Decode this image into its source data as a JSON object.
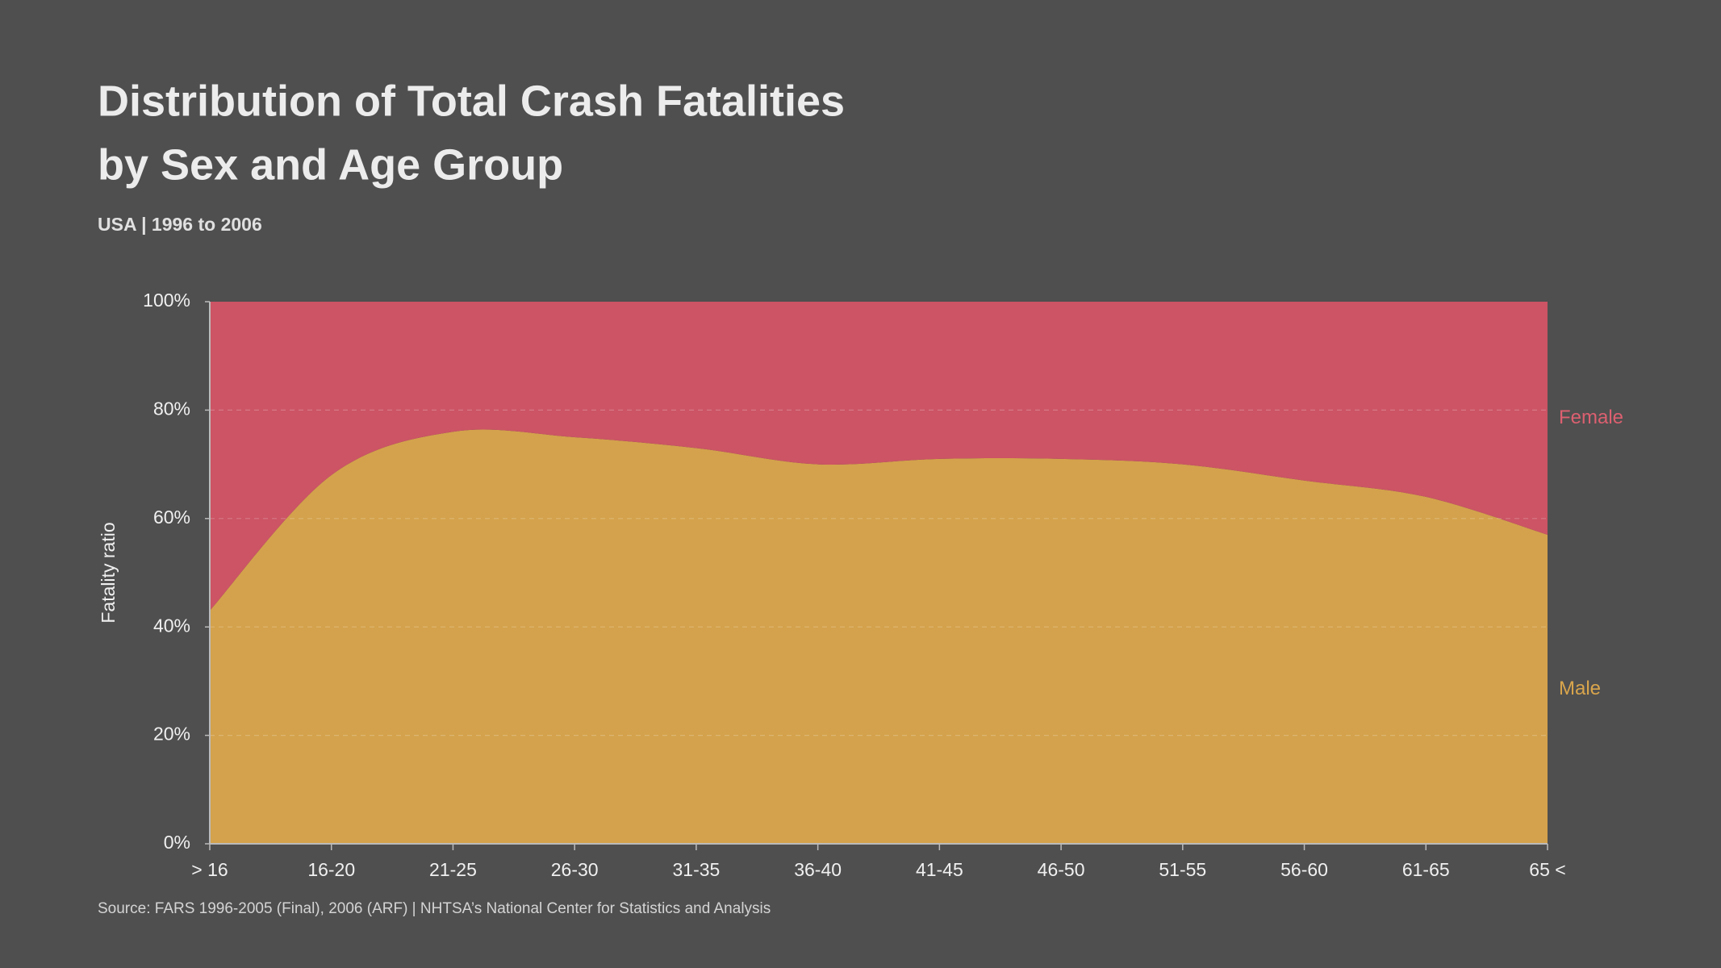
{
  "chart_data": {
    "type": "stacked-area",
    "title": [
      "Distribution of Total Crash Fatalities",
      "by Sex and Age Group"
    ],
    "subtitle": "USA | 1996 to 2006",
    "source": "Source:  FARS 1996-2005 (Final), 2006 (ARF) | NHTSA’s National Center for Statistics and Analysis",
    "y_label": "Fatality ratio",
    "categories": [
      "> 16",
      "16-20",
      "21-25",
      "26-30",
      "31-35",
      "36-40",
      "41-45",
      "46-50",
      "51-55",
      "56-60",
      "61-65",
      "65 <"
    ],
    "series": [
      {
        "name": "Male",
        "color": "#d4a24c",
        "label_color": "#d9a54c",
        "values": [
          43,
          68,
          76,
          75,
          73,
          70,
          71,
          71,
          70,
          67,
          64,
          57
        ]
      },
      {
        "name": "Female",
        "color": "#cc5464",
        "label_color": "#dc6070",
        "values": [
          57,
          32,
          24,
          25,
          27,
          30,
          29,
          29,
          30,
          33,
          36,
          43
        ]
      }
    ],
    "ylim": [
      0,
      100
    ],
    "yticks": [
      {
        "value": 0,
        "label": "0%"
      },
      {
        "value": 20,
        "label": "20%"
      },
      {
        "value": 40,
        "label": "40%"
      },
      {
        "value": 60,
        "label": "60%"
      },
      {
        "value": 80,
        "label": "80%"
      },
      {
        "value": 100,
        "label": "100%"
      }
    ],
    "grid": true
  }
}
